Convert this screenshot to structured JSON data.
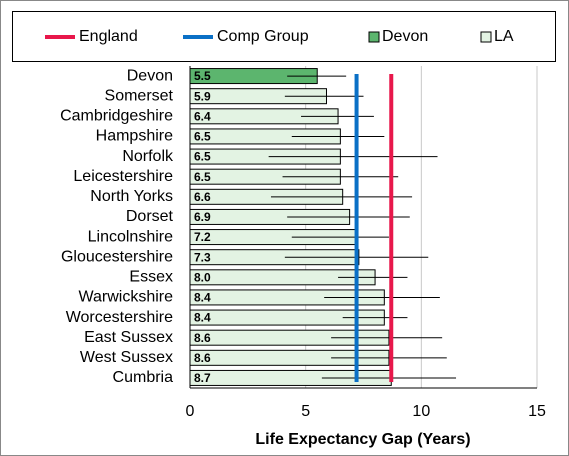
{
  "chart_data": {
    "type": "hbar_errors",
    "x_label": "Life Expectancy Gap (Years)",
    "categories": [
      "Devon",
      "Somerset",
      "Cambridgeshire",
      "Hampshire",
      "Norfolk",
      "Leicestershire",
      "North Yorks",
      "Dorset",
      "Lincolnshire",
      "Gloucestershire",
      "Essex",
      "Warwickshire",
      "Worcestershire",
      "East Sussex",
      "West Sussex",
      "Cumbria"
    ],
    "values": [
      5.5,
      5.9,
      6.4,
      6.5,
      6.5,
      6.5,
      6.6,
      6.9,
      7.2,
      7.3,
      8.0,
      8.4,
      8.4,
      8.6,
      8.6,
      8.7
    ],
    "value_labels": [
      "5.5",
      "5.9",
      "6.4",
      "6.5",
      "6.5",
      "6.5",
      "6.6",
      "6.9",
      "7.2",
      "7.3",
      "8.0",
      "8.4",
      "8.4",
      "8.6",
      "8.6",
      "8.7"
    ],
    "ci_low": [
      4.2,
      4.1,
      4.8,
      4.4,
      3.4,
      4.0,
      3.5,
      4.2,
      4.4,
      4.1,
      6.4,
      5.8,
      6.6,
      6.1,
      6.1,
      5.7
    ],
    "ci_high": [
      6.75,
      7.5,
      7.95,
      8.4,
      10.7,
      9.0,
      9.6,
      9.5,
      8.6,
      10.3,
      9.4,
      10.8,
      9.4,
      10.9,
      11.1,
      11.5
    ],
    "highlight": {
      "name": "Devon",
      "color": "#5cb56e"
    },
    "other": {
      "name": "LA",
      "color": "#e3f3e3"
    },
    "reference_lines": [
      {
        "name": "England",
        "color": "#e8174b",
        "value": 8.7
      },
      {
        "name": "Comp Group",
        "color": "#0a70c6",
        "value": 7.2
      }
    ],
    "xlim": [
      0,
      15
    ],
    "xticks": [
      0,
      5,
      10,
      15
    ],
    "grid": true
  }
}
